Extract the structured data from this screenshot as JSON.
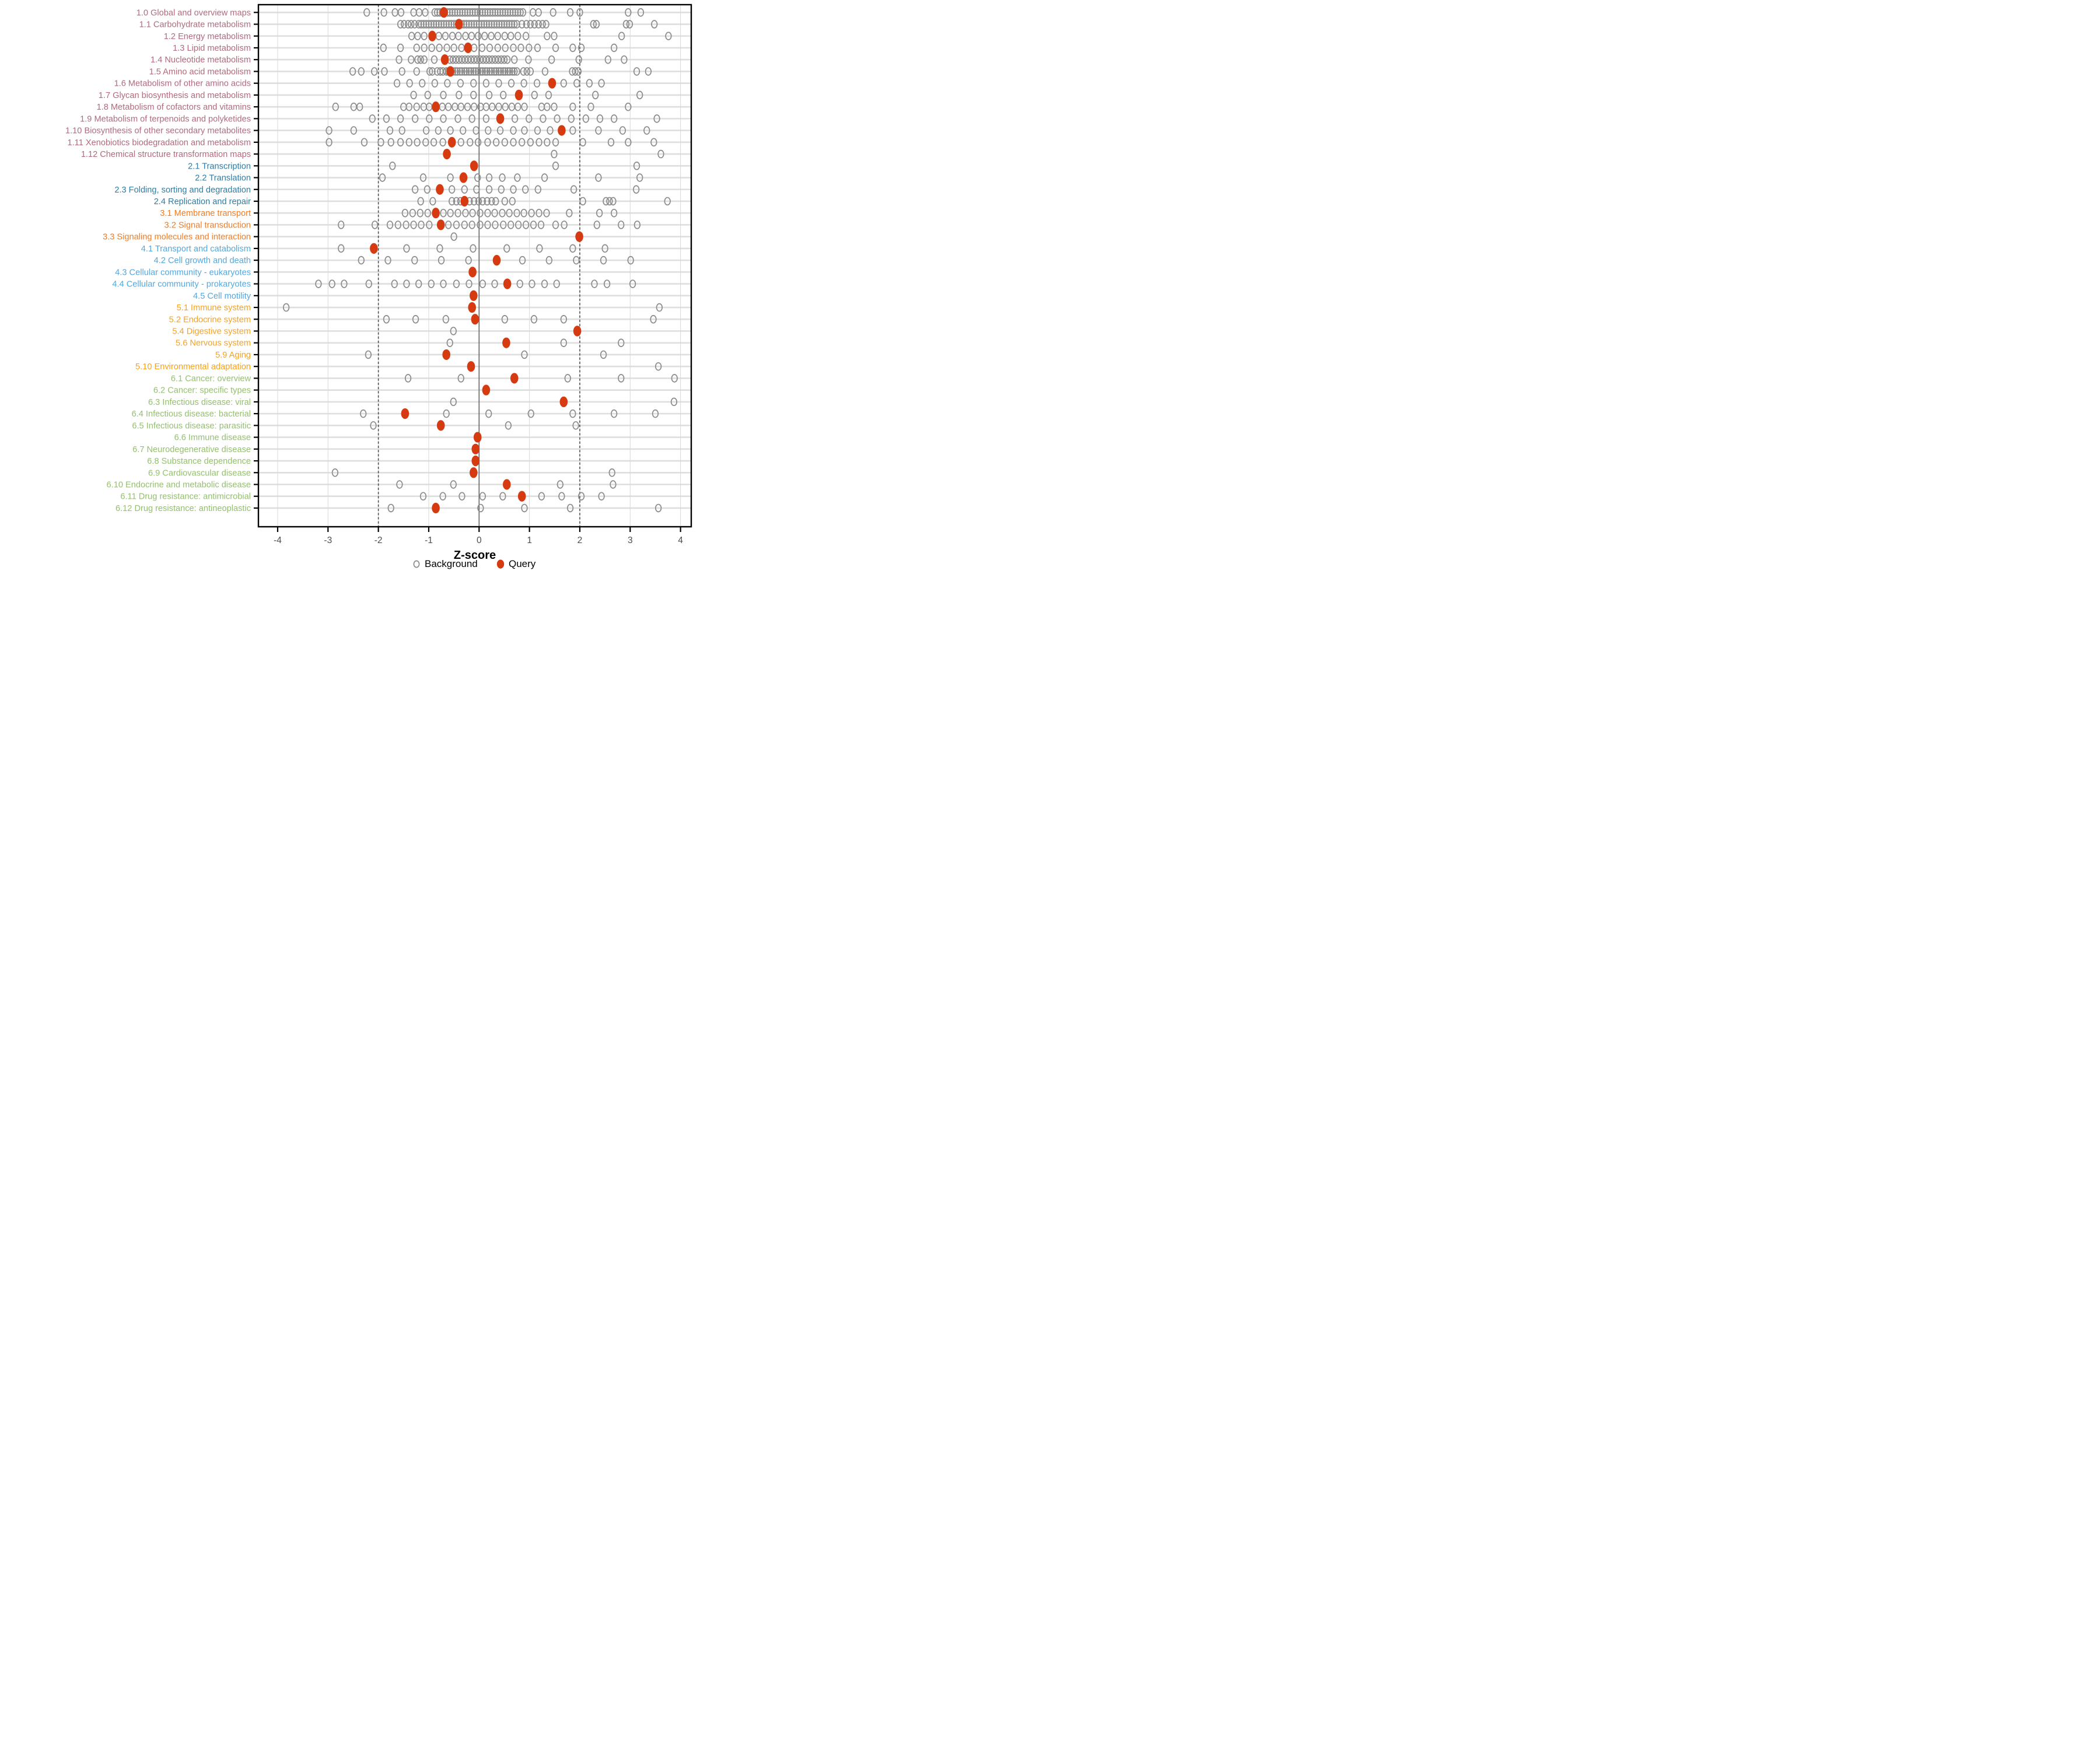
{
  "chart_data": {
    "type": "scatter",
    "title": "",
    "xlabel": "Z-score",
    "ylabel": "",
    "xlim": [
      -4.45,
      4.45
    ],
    "x_ticks": [
      -4,
      -3,
      -2,
      -1,
      0,
      1,
      2,
      3,
      4
    ],
    "grid": "on",
    "reference_lines": {
      "solid_at": 0,
      "dashed_at": [
        -2,
        2
      ]
    },
    "legend_position": "bottom",
    "legend": [
      {
        "label": "Background",
        "marker": "open-circle",
        "color": "#8C8C8C"
      },
      {
        "label": "Query",
        "marker": "filled-circle",
        "color": "#D63A10"
      }
    ],
    "group_colors": {
      "1": "#B16A7C",
      "2": "#2F7CA0",
      "3": "#F37B21",
      "4": "#55A7DB",
      "5": "#F9A11D",
      "6": "#94BF6E"
    },
    "rows": [
      {
        "label": "1.0 Global and overview maps",
        "group": "1",
        "query": -0.7,
        "background": [
          -2.23,
          -1.89,
          -1.67,
          -1.55,
          -1.3,
          -1.19,
          -1.07,
          -0.88,
          -0.83,
          -0.78,
          -0.73,
          -0.68,
          -0.63,
          -0.58,
          -0.53,
          -0.48,
          -0.43,
          -0.38,
          -0.33,
          -0.28,
          -0.23,
          -0.18,
          -0.13,
          -0.08,
          -0.03,
          0.02,
          0.07,
          0.12,
          0.17,
          0.22,
          0.27,
          0.32,
          0.37,
          0.42,
          0.47,
          0.52,
          0.57,
          0.62,
          0.67,
          0.72,
          0.77,
          0.82,
          0.87,
          1.07,
          1.18,
          1.47,
          1.81,
          2.0,
          2.96,
          3.21
        ]
      },
      {
        "label": "1.1 Carbohydrate metabolism",
        "group": "1",
        "query": -0.4,
        "background": [
          -1.56,
          -1.49,
          -1.41,
          -1.35,
          -1.28,
          -1.2,
          -1.15,
          -1.1,
          -1.05,
          -1.0,
          -0.95,
          -0.9,
          -0.85,
          -0.8,
          -0.75,
          -0.7,
          -0.65,
          -0.6,
          -0.55,
          -0.5,
          -0.45,
          -0.4,
          -0.35,
          -0.3,
          -0.25,
          -0.2,
          -0.15,
          -0.1,
          -0.05,
          0.0,
          0.05,
          0.1,
          0.15,
          0.2,
          0.25,
          0.3,
          0.35,
          0.4,
          0.45,
          0.5,
          0.55,
          0.6,
          0.65,
          0.7,
          0.75,
          0.85,
          0.94,
          1.02,
          1.1,
          1.18,
          1.26,
          1.33,
          2.27,
          2.33,
          2.92,
          2.99,
          3.48
        ]
      },
      {
        "label": "1.2 Energy metabolism",
        "group": "1",
        "query": -0.93,
        "background": [
          -1.34,
          -1.22,
          -1.09,
          -0.8,
          -0.67,
          -0.53,
          -0.41,
          -0.27,
          -0.15,
          -0.02,
          0.11,
          0.24,
          0.37,
          0.51,
          0.63,
          0.77,
          0.93,
          1.35,
          1.49,
          2.83,
          3.76
        ]
      },
      {
        "label": "1.3 Lipid metabolism",
        "group": "1",
        "query": -0.22,
        "background": [
          -1.9,
          -1.56,
          -1.24,
          -1.09,
          -0.94,
          -0.79,
          -0.64,
          -0.5,
          -0.35,
          -0.1,
          0.06,
          0.21,
          0.37,
          0.52,
          0.68,
          0.83,
          0.99,
          1.16,
          1.52,
          1.86,
          2.03,
          2.68
        ]
      },
      {
        "label": "1.4 Nucleotide metabolism",
        "group": "1",
        "query": -0.68,
        "background": [
          -1.59,
          -1.35,
          -1.22,
          -1.16,
          -1.09,
          -0.89,
          -0.58,
          -0.52,
          -0.46,
          -0.4,
          -0.34,
          -0.28,
          -0.22,
          -0.16,
          -0.1,
          -0.04,
          0.02,
          0.08,
          0.14,
          0.2,
          0.26,
          0.32,
          0.38,
          0.44,
          0.5,
          0.56,
          0.7,
          0.98,
          1.44,
          1.98,
          2.56,
          2.88
        ]
      },
      {
        "label": "1.5 Amino acid metabolism",
        "group": "1",
        "query": -0.57,
        "background": [
          -2.51,
          -2.34,
          -2.08,
          -1.88,
          -1.53,
          -1.24,
          -0.98,
          -0.93,
          -0.83,
          -0.77,
          -0.72,
          -0.65,
          -0.61,
          -0.56,
          -0.52,
          -0.47,
          -0.43,
          -0.38,
          -0.34,
          -0.29,
          -0.25,
          -0.2,
          -0.16,
          -0.11,
          -0.07,
          -0.02,
          0.03,
          0.07,
          0.12,
          0.16,
          0.21,
          0.25,
          0.3,
          0.34,
          0.39,
          0.43,
          0.48,
          0.52,
          0.57,
          0.61,
          0.66,
          0.7,
          0.75,
          0.88,
          0.95,
          1.02,
          1.31,
          1.85,
          1.91,
          1.97,
          3.13,
          3.36
        ]
      },
      {
        "label": "1.6 Metabolism of other amino acids",
        "group": "1",
        "query": 1.45,
        "background": [
          -1.63,
          -1.38,
          -1.13,
          -0.88,
          -0.63,
          -0.37,
          -0.11,
          0.14,
          0.39,
          0.64,
          0.89,
          1.15,
          1.68,
          1.94,
          2.19,
          2.43
        ]
      },
      {
        "label": "1.7 Glycan biosynthesis and metabolism",
        "group": "1",
        "query": 0.79,
        "background": [
          -1.3,
          -1.02,
          -0.71,
          -0.4,
          -0.11,
          0.2,
          0.48,
          1.1,
          1.38,
          2.31,
          3.19
        ]
      },
      {
        "label": "1.8 Metabolism of cofactors and vitamins",
        "group": "1",
        "query": -0.86,
        "background": [
          -2.85,
          -2.49,
          -2.37,
          -1.5,
          -1.39,
          -1.24,
          -1.1,
          -0.99,
          -0.73,
          -0.61,
          -0.48,
          -0.36,
          -0.23,
          -0.1,
          0.03,
          0.14,
          0.26,
          0.39,
          0.52,
          0.65,
          0.77,
          0.9,
          1.24,
          1.35,
          1.49,
          1.86,
          2.22,
          2.96
        ]
      },
      {
        "label": "1.9 Metabolism of terpenoids and polyketides",
        "group": "1",
        "query": 0.42,
        "background": [
          -2.12,
          -1.84,
          -1.56,
          -1.27,
          -0.99,
          -0.71,
          -0.42,
          -0.14,
          0.14,
          0.71,
          0.99,
          1.27,
          1.55,
          1.83,
          2.12,
          2.4,
          2.68,
          3.53
        ]
      },
      {
        "label": "1.10 Biosynthesis of other secondary metabolites",
        "group": "1",
        "query": 1.64,
        "background": [
          -2.98,
          -2.49,
          -1.77,
          -1.53,
          -1.05,
          -0.81,
          -0.57,
          -0.32,
          -0.06,
          0.18,
          0.42,
          0.68,
          0.9,
          1.16,
          1.41,
          1.86,
          2.37,
          2.85,
          3.33
        ]
      },
      {
        "label": "1.11 Xenobiotics biodegradation and metabolism",
        "group": "1",
        "query": -0.54,
        "background": [
          -2.98,
          -2.28,
          -1.95,
          -1.75,
          -1.56,
          -1.39,
          -1.23,
          -1.06,
          -0.9,
          -0.72,
          -0.36,
          -0.18,
          -0.02,
          0.17,
          0.34,
          0.51,
          0.68,
          0.85,
          1.02,
          1.19,
          1.35,
          1.52,
          2.06,
          2.62,
          2.96,
          3.47
        ]
      },
      {
        "label": "1.12 Chemical structure transformation maps",
        "group": "1",
        "query": -0.64,
        "background": [
          1.49,
          3.61
        ]
      },
      {
        "label": "2.1 Transcription",
        "group": "2",
        "query": -0.1,
        "background": [
          -1.72,
          1.52,
          3.13
        ]
      },
      {
        "label": "2.2 Translation",
        "group": "2",
        "query": -0.31,
        "background": [
          -1.92,
          -1.11,
          -0.57,
          -0.03,
          0.2,
          0.46,
          0.76,
          1.3,
          2.37,
          3.19
        ]
      },
      {
        "label": "2.3 Folding, sorting and degradation",
        "group": "2",
        "query": -0.78,
        "background": [
          -1.27,
          -1.03,
          -0.54,
          -0.29,
          -0.05,
          0.2,
          0.44,
          0.68,
          0.92,
          1.17,
          1.88,
          3.12
        ]
      },
      {
        "label": "2.4 Replication and repair",
        "group": "2",
        "query": -0.29,
        "background": [
          -1.16,
          -0.92,
          -0.54,
          -0.45,
          -0.37,
          -0.28,
          -0.19,
          -0.1,
          -0.01,
          0.07,
          0.16,
          0.25,
          0.33,
          0.51,
          0.66,
          2.06,
          2.52,
          2.59,
          2.66,
          3.74
        ]
      },
      {
        "label": "3.1 Membrane transport",
        "group": "3",
        "query": -0.86,
        "background": [
          -1.47,
          -1.32,
          -1.17,
          -1.02,
          -0.71,
          -0.57,
          -0.42,
          -0.27,
          -0.13,
          0.02,
          0.17,
          0.31,
          0.46,
          0.6,
          0.75,
          0.89,
          1.04,
          1.19,
          1.34,
          1.79,
          2.39,
          2.68
        ]
      },
      {
        "label": "3.2 Signal transduction",
        "group": "3",
        "query": -0.76,
        "background": [
          -2.74,
          -2.07,
          -1.77,
          -1.61,
          -1.45,
          -1.3,
          -1.15,
          -0.99,
          -0.61,
          -0.45,
          -0.29,
          -0.14,
          0.02,
          0.17,
          0.32,
          0.48,
          0.63,
          0.78,
          0.93,
          1.08,
          1.23,
          1.52,
          1.69,
          2.34,
          2.82,
          3.14
        ]
      },
      {
        "label": "3.3 Signaling molecules and interaction",
        "group": "3",
        "query": 1.99,
        "background": [
          -0.5
        ]
      },
      {
        "label": "4.1 Transport and catabolism",
        "group": "4",
        "query": -2.09,
        "background": [
          -2.74,
          -1.44,
          -0.78,
          -0.12,
          0.55,
          1.2,
          1.86,
          2.5
        ]
      },
      {
        "label": "4.2 Cell growth and death",
        "group": "4",
        "query": 0.35,
        "background": [
          -2.34,
          -1.81,
          -1.28,
          -0.75,
          -0.21,
          0.86,
          1.39,
          1.93,
          2.47,
          3.01
        ]
      },
      {
        "label": "4.3 Cellular community - eukaryotes",
        "group": "4",
        "query": -0.13,
        "background": []
      },
      {
        "label": "4.4 Cellular community - prokaryotes",
        "group": "4",
        "query": 0.56,
        "background": [
          -3.19,
          -2.92,
          -2.68,
          -2.19,
          -1.68,
          -1.44,
          -1.2,
          -0.95,
          -0.71,
          -0.45,
          -0.2,
          0.07,
          0.31,
          0.81,
          1.05,
          1.3,
          1.54,
          2.29,
          2.54,
          3.05
        ]
      },
      {
        "label": "4.5 Cell motility",
        "group": "4",
        "query": -0.11,
        "background": []
      },
      {
        "label": "5.1 Immune system",
        "group": "5",
        "query": -0.14,
        "background": [
          -3.83,
          3.58
        ]
      },
      {
        "label": "5.2 Endocrine system",
        "group": "5",
        "query": -0.08,
        "background": [
          -1.84,
          -1.26,
          -0.66,
          0.51,
          1.09,
          1.68,
          3.46
        ]
      },
      {
        "label": "5.4 Digestive system",
        "group": "5",
        "query": 1.95,
        "background": [
          -0.51
        ]
      },
      {
        "label": "5.6 Nervous system",
        "group": "5",
        "query": 0.54,
        "background": [
          -0.58,
          1.68,
          2.82
        ]
      },
      {
        "label": "5.9 Aging",
        "group": "5",
        "query": -0.65,
        "background": [
          -2.2,
          0.9,
          2.47
        ]
      },
      {
        "label": "5.10 Environmental adaptation",
        "group": "5",
        "query": -0.16,
        "background": [
          3.56
        ]
      },
      {
        "label": "6.1 Cancer: overview",
        "group": "6",
        "query": 0.7,
        "background": [
          -1.41,
          -0.36,
          1.76,
          2.82,
          3.88
        ]
      },
      {
        "label": "6.2 Cancer: specific types",
        "group": "6",
        "query": 0.14,
        "background": []
      },
      {
        "label": "6.3 Infectious disease: viral",
        "group": "6",
        "query": 1.68,
        "background": [
          -0.51,
          3.87
        ]
      },
      {
        "label": "6.4 Infectious disease: bacterial",
        "group": "6",
        "query": -1.47,
        "background": [
          -2.3,
          -0.65,
          0.19,
          1.03,
          1.86,
          2.68,
          3.5
        ]
      },
      {
        "label": "6.5 Infectious disease: parasitic",
        "group": "6",
        "query": -0.76,
        "background": [
          -2.1,
          0.58,
          1.92
        ]
      },
      {
        "label": "6.6 Immune disease",
        "group": "6",
        "query": -0.03,
        "background": []
      },
      {
        "label": "6.7 Neurodegenerative disease",
        "group": "6",
        "query": -0.07,
        "background": []
      },
      {
        "label": "6.8 Substance dependence",
        "group": "6",
        "query": -0.07,
        "background": []
      },
      {
        "label": "6.9 Cardiovascular disease",
        "group": "6",
        "query": -0.11,
        "background": [
          -2.86,
          2.64
        ]
      },
      {
        "label": "6.10 Endocrine and metabolic disease",
        "group": "6",
        "query": 0.55,
        "background": [
          -1.58,
          -0.51,
          1.61,
          2.66
        ]
      },
      {
        "label": "6.11 Drug resistance: antimicrobial",
        "group": "6",
        "query": 0.85,
        "background": [
          -1.11,
          -0.72,
          -0.34,
          0.07,
          0.47,
          1.24,
          1.64,
          2.03,
          2.43
        ]
      },
      {
        "label": "6.12 Drug resistance: antineoplastic",
        "group": "6",
        "query": -0.86,
        "background": [
          -1.75,
          0.03,
          0.9,
          1.81,
          3.56
        ]
      }
    ]
  },
  "style_colors": {
    "background_point_stroke": "#8C8C8C",
    "query_point_fill": "#D63A10",
    "row_gridline": "#DEDEDE",
    "vertical_gridline": "#D8D8D8",
    "zero_line": "#666666",
    "dashed_line": "#4D4D4D",
    "panel_border": "#000000",
    "tick_label": "#4D4D4D"
  }
}
